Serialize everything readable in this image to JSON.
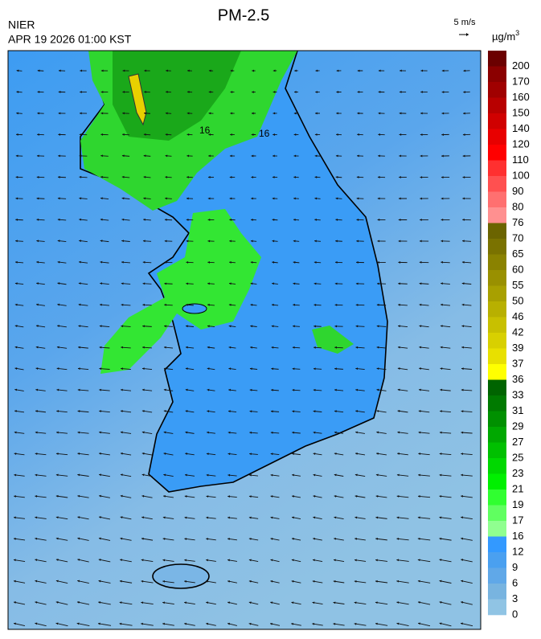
{
  "header": {
    "title": "PM-2.5",
    "source": "NIER",
    "timestamp": "APR 19 2026 01:00 KST",
    "wind_scale": "5 m/s",
    "unit": "µg/m",
    "unit_sup": "3"
  },
  "map": {
    "contour_labels": [
      "16",
      "16"
    ]
  },
  "colorbar": {
    "levels": [
      200,
      170,
      160,
      150,
      140,
      120,
      110,
      100,
      90,
      80,
      76,
      70,
      65,
      60,
      55,
      50,
      46,
      42,
      39,
      37,
      36,
      33,
      31,
      29,
      27,
      25,
      23,
      21,
      19,
      17,
      16,
      12,
      9,
      6,
      3,
      0
    ],
    "colors": [
      "#6b0000",
      "#8b0000",
      "#a00000",
      "#b80000",
      "#d00000",
      "#e80000",
      "#ff0000",
      "#ff3030",
      "#ff5050",
      "#ff7070",
      "#ff9090",
      "#6b6400",
      "#7a7200",
      "#8a8200",
      "#999000",
      "#a8a000",
      "#b8b000",
      "#c8c000",
      "#d8d000",
      "#e8e000",
      "#ffff00",
      "#006400",
      "#007a00",
      "#009000",
      "#00a800",
      "#00c000",
      "#00d800",
      "#00f000",
      "#30ff30",
      "#60ff60",
      "#90ff90",
      "#3399ff",
      "#4aa0f0",
      "#60a8e8",
      "#78b4e0",
      "#90c4e4"
    ]
  }
}
